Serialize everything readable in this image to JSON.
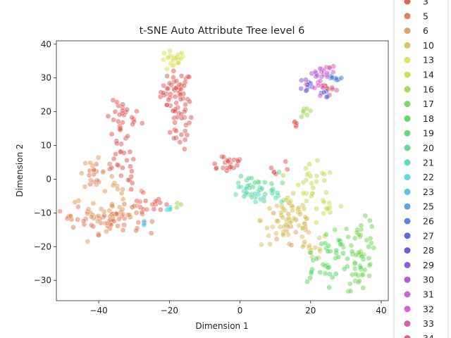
{
  "chart_data": {
    "type": "scatter",
    "title": "t-SNE Auto Attribute Tree level 6",
    "xlabel": "Dimension 1",
    "ylabel": "Dimension 2",
    "xlim": [
      -52,
      42
    ],
    "ylim": [
      -36,
      41
    ],
    "xticks": [
      -40,
      -20,
      0,
      20,
      40
    ],
    "yticks": [
      -30,
      -20,
      -10,
      0,
      10,
      20,
      30,
      40
    ],
    "grid": false,
    "legend_position": "right",
    "point_alpha": 0.5,
    "series": [
      {
        "name": "3",
        "color": "#d9534f",
        "clusters": [
          {
            "cx": -18,
            "cy": 26,
            "sx": 2.2,
            "sy": 3,
            "n": 45
          },
          {
            "cx": -17,
            "cy": 17,
            "sx": 1.8,
            "sy": 4,
            "n": 30
          },
          {
            "cx": -33,
            "cy": 18,
            "sx": 2.5,
            "sy": 2.5,
            "n": 25
          },
          {
            "cx": -34,
            "cy": 9,
            "sx": 1.5,
            "sy": 4,
            "n": 18
          },
          {
            "cx": -32,
            "cy": 0,
            "sx": 1.2,
            "sy": 4,
            "n": 10
          },
          {
            "cx": -4,
            "cy": 5,
            "sx": 3,
            "sy": 1.5,
            "n": 22
          },
          {
            "cx": 16,
            "cy": 16,
            "sx": 0.6,
            "sy": 1,
            "n": 5
          },
          {
            "cx": -24,
            "cy": -7,
            "sx": 3,
            "sy": 1.5,
            "n": 12
          },
          {
            "cx": 10,
            "cy": 3,
            "sx": 2,
            "sy": 1.5,
            "n": 6
          },
          {
            "cx": 24,
            "cy": 27,
            "sx": 1.5,
            "sy": 1,
            "n": 8
          }
        ]
      },
      {
        "name": "5",
        "color": "#de7352",
        "clusters": [
          {
            "cx": -36,
            "cy": -12,
            "sx": 4,
            "sy": 2,
            "n": 45
          },
          {
            "cx": -41,
            "cy": 1,
            "sx": 2,
            "sy": 2,
            "n": 12
          },
          {
            "cx": -46,
            "cy": -10,
            "sx": 2,
            "sy": 2,
            "n": 10
          },
          {
            "cx": -27,
            "cy": -7,
            "sx": 2,
            "sy": 2,
            "n": 8
          }
        ]
      },
      {
        "name": "6",
        "color": "#dc9a5c",
        "clusters": [
          {
            "cx": -38,
            "cy": -10,
            "sx": 5,
            "sy": 2.5,
            "n": 30
          },
          {
            "cx": -42,
            "cy": 2,
            "sx": 2,
            "sy": 2,
            "n": 10
          },
          {
            "cx": -35,
            "cy": -3,
            "sx": 2,
            "sy": 2,
            "n": 8
          },
          {
            "cx": 13,
            "cy": -14,
            "sx": 3,
            "sy": 3,
            "n": 15
          }
        ]
      },
      {
        "name": "10",
        "color": "#d4bf55",
        "clusters": [
          {
            "cx": 14,
            "cy": -12,
            "sx": 4,
            "sy": 4,
            "n": 55
          },
          {
            "cx": 20,
            "cy": -20,
            "sx": 2.5,
            "sy": 2,
            "n": 15
          }
        ]
      },
      {
        "name": "13",
        "color": "#d8df5a",
        "clusters": [
          {
            "cx": -19,
            "cy": 35,
            "sx": 1.8,
            "sy": 1.6,
            "n": 25
          }
        ]
      },
      {
        "name": "14",
        "color": "#c0dc54",
        "clusters": [
          {
            "cx": 21,
            "cy": -3,
            "sx": 3,
            "sy": 3.5,
            "n": 30
          },
          {
            "cx": 25,
            "cy": -9,
            "sx": 1.5,
            "sy": 1.5,
            "n": 8
          }
        ]
      },
      {
        "name": "16",
        "color": "#9ad64f",
        "clusters": [
          {
            "cx": 19,
            "cy": 20,
            "sx": 1,
            "sy": 1.5,
            "n": 7
          },
          {
            "cx": -17,
            "cy": -7,
            "sx": 0.8,
            "sy": 0.8,
            "n": 3
          }
        ]
      },
      {
        "name": "17",
        "color": "#6fd64f",
        "clusters": [
          {
            "cx": 34,
            "cy": -18,
            "sx": 2.5,
            "sy": 3,
            "n": 30
          },
          {
            "cx": 34,
            "cy": -27,
            "sx": 2,
            "sy": 3,
            "n": 25
          }
        ]
      },
      {
        "name": "18",
        "color": "#4fd65a",
        "clusters": [
          {
            "cx": 27,
            "cy": -22,
            "sx": 3,
            "sy": 2.5,
            "n": 25
          },
          {
            "cx": 22,
            "cy": -27,
            "sx": 2.5,
            "sy": 2,
            "n": 15
          }
        ]
      },
      {
        "name": "19",
        "color": "#4fd67a",
        "clusters": [
          {
            "cx": 5,
            "cy": -2,
            "sx": 3,
            "sy": 2,
            "n": 15
          }
        ]
      },
      {
        "name": "20",
        "color": "#4fd699",
        "clusters": [
          {
            "cx": 2,
            "cy": -3,
            "sx": 2.5,
            "sy": 2,
            "n": 15
          },
          {
            "cx": 10,
            "cy": -6,
            "sx": 2,
            "sy": 2,
            "n": 8
          }
        ]
      },
      {
        "name": "21",
        "color": "#4fd6bd",
        "clusters": [
          {
            "cx": 3,
            "cy": -4,
            "sx": 2,
            "sy": 1.5,
            "n": 10
          }
        ]
      },
      {
        "name": "22",
        "color": "#4fd6d6",
        "clusters": [
          {
            "cx": -20,
            "cy": -9,
            "sx": 0.8,
            "sy": 0.6,
            "n": 6
          }
        ]
      },
      {
        "name": "23",
        "color": "#4fbcd6",
        "clusters": [
          {
            "cx": -27,
            "cy": -13,
            "sx": 0.6,
            "sy": 0.6,
            "n": 3
          }
        ]
      },
      {
        "name": "25",
        "color": "#4f9ad6",
        "clusters": [
          {
            "cx": 26,
            "cy": 30,
            "sx": 1.2,
            "sy": 1,
            "n": 6
          }
        ]
      },
      {
        "name": "26",
        "color": "#4f77d6",
        "clusters": [
          {
            "cx": 27,
            "cy": 30,
            "sx": 1,
            "sy": 1,
            "n": 6
          }
        ]
      },
      {
        "name": "27",
        "color": "#4f5ad6",
        "clusters": [
          {
            "cx": 24,
            "cy": 25,
            "sx": 1,
            "sy": 0.8,
            "n": 5
          }
        ]
      },
      {
        "name": "28",
        "color": "#5a4fd6",
        "clusters": [
          {
            "cx": 20,
            "cy": 28,
            "sx": 1,
            "sy": 1,
            "n": 4
          }
        ]
      },
      {
        "name": "29",
        "color": "#7d4fd6",
        "clusters": [
          {
            "cx": 19,
            "cy": 28,
            "sx": 1,
            "sy": 1.2,
            "n": 6
          }
        ]
      },
      {
        "name": "30",
        "color": "#a54fd6",
        "clusters": [
          {
            "cx": 21,
            "cy": 31,
            "sx": 1,
            "sy": 1,
            "n": 5
          }
        ]
      },
      {
        "name": "31",
        "color": "#c94fd6",
        "clusters": [
          {
            "cx": 24,
            "cy": 32,
            "sx": 1.5,
            "sy": 0.8,
            "n": 8
          }
        ]
      },
      {
        "name": "32",
        "color": "#d64fc4",
        "clusters": [
          {
            "cx": 23,
            "cy": 29,
            "sx": 1.5,
            "sy": 1.5,
            "n": 8
          }
        ]
      },
      {
        "name": "33",
        "color": "#d64fa0",
        "clusters": [
          {
            "cx": 25,
            "cy": 33,
            "sx": 1,
            "sy": 0.6,
            "n": 4
          }
        ]
      },
      {
        "name": "34",
        "color": "#d64f7d",
        "clusters": [
          {
            "cx": 27,
            "cy": 27,
            "sx": 0.8,
            "sy": 0.8,
            "n": 3
          }
        ]
      }
    ]
  }
}
